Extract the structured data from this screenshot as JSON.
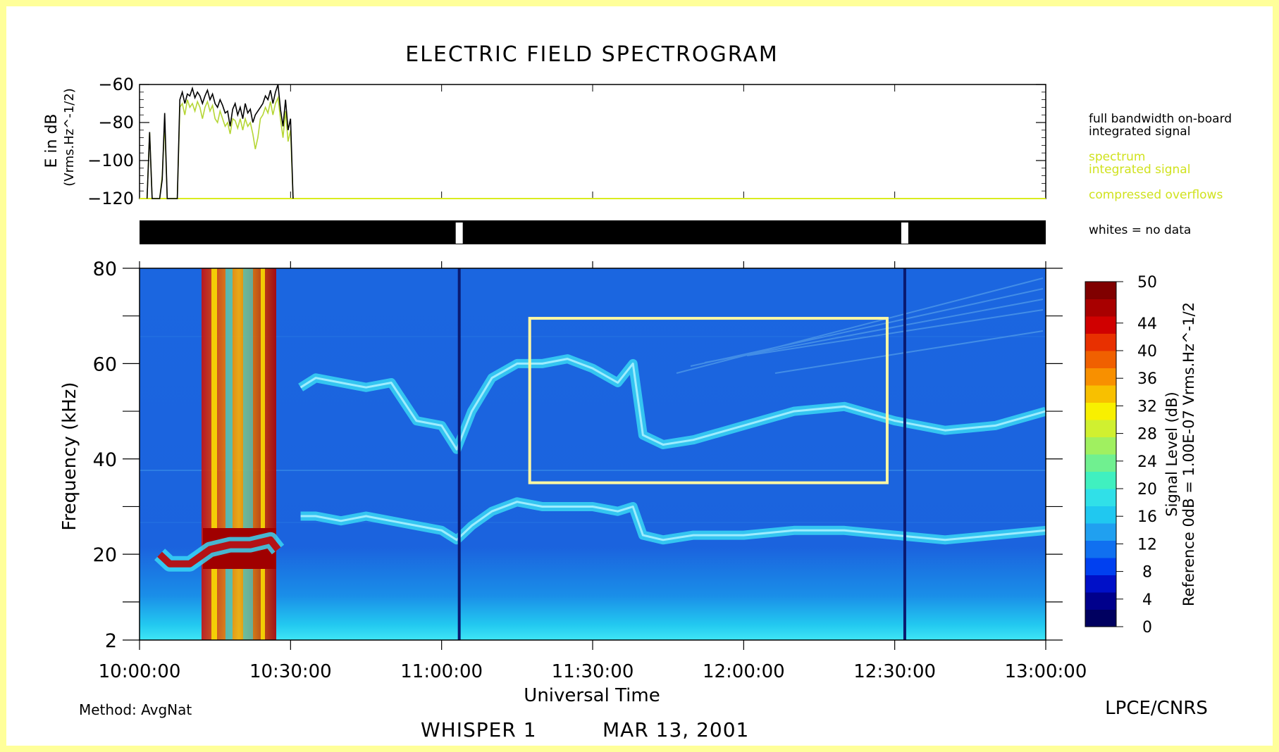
{
  "chart_data": [
    {
      "type": "line",
      "title": "ELECTRIC FIELD SPECTROGRAM",
      "ylabel": "E in dB",
      "ylabel_unit": "(Vrms.Hz^-1/2)",
      "ylim": [
        -120,
        -60
      ],
      "yticks": [
        -60,
        -80,
        -100,
        -120
      ],
      "xlim": [
        "10:00:00",
        "13:00:00"
      ],
      "series": [
        {
          "name": "full bandwidth on-board integrated signal",
          "color": "#000000",
          "x_min": [
            1.5,
            2,
            2.5,
            4,
            4.5,
            5,
            5.5,
            6,
            6.5,
            7,
            7.5,
            8,
            8.5,
            9,
            9.5,
            10,
            10.5,
            11,
            11.5,
            12,
            12.5,
            13,
            13.5,
            14,
            14.5,
            15,
            15.5,
            16,
            16.5,
            17,
            17.5,
            18,
            18.5,
            19,
            19.5,
            20,
            20.5,
            21,
            21.5,
            22,
            22.5,
            23,
            23.5,
            24,
            24.5,
            25,
            25.5,
            26,
            26.5,
            27,
            27.5,
            28,
            28.5,
            29,
            29.5,
            30,
            30.5
          ],
          "values": [
            -120,
            -85,
            -120,
            -120,
            -110,
            -75,
            -120,
            -120,
            -120,
            -120,
            -120,
            -68,
            -64,
            -70,
            -65,
            -66,
            -62,
            -67,
            -64,
            -66,
            -70,
            -66,
            -63,
            -68,
            -65,
            -70,
            -72,
            -68,
            -71,
            -75,
            -74,
            -82,
            -73,
            -70,
            -76,
            -72,
            -78,
            -70,
            -75,
            -73,
            -80,
            -76,
            -74,
            -72,
            -70,
            -66,
            -68,
            -63,
            -70,
            -64,
            -60,
            -73,
            -82,
            -68,
            -84,
            -78,
            -120
          ]
        },
        {
          "name": "spectrum integrated signal",
          "color": "#b5d634",
          "x_min": [
            1.5,
            2,
            2.5,
            4,
            4.5,
            5,
            5.5,
            6,
            6.5,
            7,
            7.5,
            8,
            8.5,
            9,
            9.5,
            10,
            10.5,
            11,
            11.5,
            12,
            12.5,
            13,
            13.5,
            14,
            14.5,
            15,
            15.5,
            16,
            16.5,
            17,
            17.5,
            18,
            18.5,
            19,
            19.5,
            20,
            20.5,
            21,
            21.5,
            22,
            22.5,
            23,
            23.5,
            24,
            24.5,
            25,
            25.5,
            26,
            26.5,
            27,
            27.5,
            28,
            28.5,
            29,
            29.5,
            30,
            30.5
          ],
          "values": [
            -120,
            -85,
            -120,
            -120,
            -108,
            -80,
            -120,
            -120,
            -120,
            -120,
            -120,
            -72,
            -70,
            -76,
            -68,
            -72,
            -70,
            -74,
            -69,
            -72,
            -78,
            -72,
            -69,
            -74,
            -71,
            -78,
            -80,
            -74,
            -78,
            -82,
            -80,
            -86,
            -78,
            -79,
            -83,
            -78,
            -84,
            -78,
            -82,
            -80,
            -86,
            -94,
            -88,
            -78,
            -76,
            -72,
            -75,
            -69,
            -76,
            -70,
            -67,
            -78,
            -88,
            -74,
            -90,
            -84,
            -120
          ]
        },
        {
          "name": "compressed overflows",
          "color": "#d9ec1f",
          "x_min": [
            0,
            180
          ],
          "values": [
            -120,
            -120
          ]
        }
      ]
    },
    {
      "type": "heatmap",
      "xlabel": "Universal Time",
      "ylabel": "Frequency (kHz)",
      "xlim": [
        "10:00:00",
        "13:00:00"
      ],
      "ylim": [
        2,
        80
      ],
      "xticks": [
        "10:00:00",
        "10:30:00",
        "11:00:00",
        "11:30:00",
        "12:00:00",
        "12:30:00",
        "13:00:00"
      ],
      "yticks": [
        80,
        60,
        40,
        20,
        2
      ],
      "colorbar": {
        "label": "Signal Level (dB)",
        "reference": "Reference 0dB = 1.00E-07 Vrms.Hz^-1/2",
        "ticks": [
          50,
          44,
          40,
          36,
          32,
          28,
          24,
          20,
          16,
          12,
          8,
          4,
          0
        ]
      },
      "data_gaps_min": [
        63.5,
        152
      ],
      "emission_bands": [
        {
          "time_min": [
            4,
            6,
            10,
            14,
            18,
            22,
            26,
            27.5
          ],
          "freq_khz": [
            20,
            18,
            18,
            21,
            22,
            22,
            23,
            21
          ]
        },
        {
          "time_min": [
            32,
            35,
            40,
            45,
            50,
            55,
            60,
            63,
            66,
            70,
            75,
            80,
            85,
            90,
            95,
            98,
            100,
            104,
            110,
            120,
            130,
            140,
            150,
            160,
            170,
            180
          ],
          "freq_khz": [
            28,
            28,
            27,
            28,
            27,
            26,
            25,
            23,
            26,
            29,
            31,
            30,
            30,
            30,
            29,
            30,
            24,
            23,
            24,
            24,
            25,
            25,
            24,
            23,
            24,
            25
          ]
        },
        {
          "time_min": [
            32,
            35,
            40,
            45,
            50,
            55,
            60,
            63,
            66,
            70,
            75,
            80,
            85,
            90,
            95,
            98,
            100,
            104,
            110,
            120,
            130,
            140,
            150,
            160,
            170,
            180
          ],
          "freq_khz": [
            55,
            57,
            56,
            55,
            56,
            48,
            47,
            42,
            50,
            57,
            60,
            60,
            61,
            59,
            56,
            60,
            45,
            43,
            44,
            47,
            50,
            51,
            48,
            46,
            47,
            50
          ]
        }
      ],
      "highlight_box": {
        "time_min": [
          77.5,
          148.5
        ],
        "freq_khz": [
          35,
          69.5
        ],
        "color": "#fff7a3"
      }
    }
  ],
  "legend": {
    "line1": "full bandwidth on-board",
    "line2": "integrated signal",
    "line3": "spectrum",
    "line4": "integrated signal",
    "line5": "compressed overflows",
    "line6": "whites = no data"
  },
  "footer": {
    "method": "Method: AvgNat",
    "instrument": "WHISPER 1",
    "date": "MAR 13, 2001",
    "institution": "LPCE/CNRS"
  }
}
